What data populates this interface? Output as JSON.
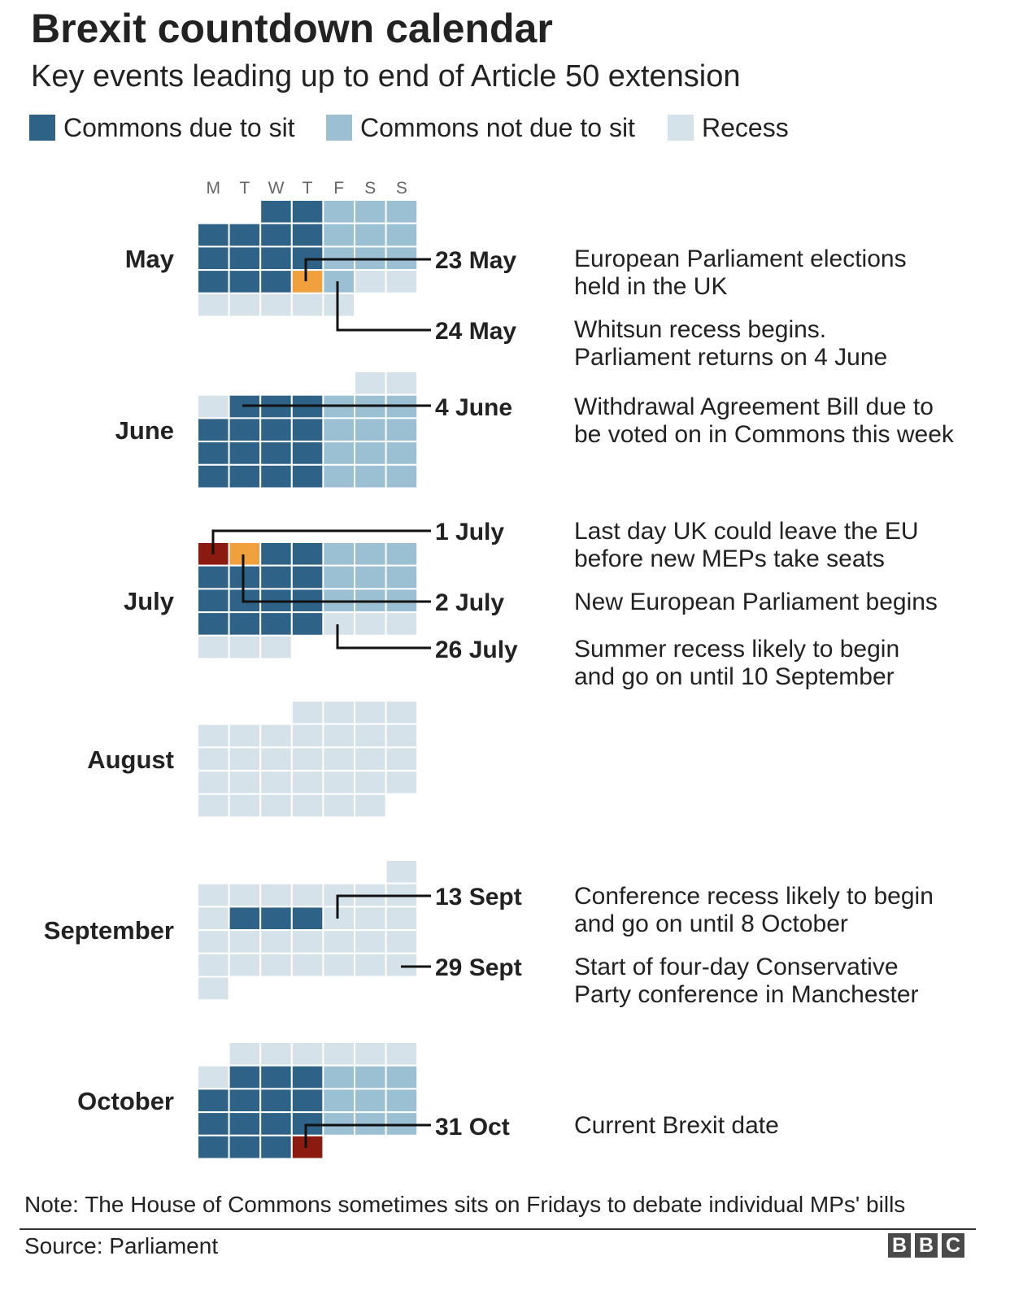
{
  "header": {
    "title": "Brexit countdown calendar",
    "subtitle": "Key events leading up to end of Article 50 extension"
  },
  "legend": [
    {
      "label": "Commons due to sit",
      "color": "#2f6287"
    },
    {
      "label": "Commons not due to sit",
      "color": "#9bc0d4"
    },
    {
      "label": "Recess",
      "color": "#d6e2e9"
    }
  ],
  "colors": {
    "sit": "#2f6287",
    "nosit": "#9bc0d4",
    "recess": "#d6e2e9",
    "highlight_orange": "#f0a03c",
    "highlight_red": "#8b1a10"
  },
  "weekdays": [
    "M",
    "T",
    "W",
    "T",
    "F",
    "S",
    "S"
  ],
  "months": [
    {
      "name": "May",
      "weeks": [
        "__SSNNN",
        "SSSSNNN",
        "SSSSNNN",
        "SSSONRR",
        "RRRRR__"
      ]
    },
    {
      "name": "June",
      "weeks": [
        "_____RR",
        "RSSSNNN",
        "SSSSNNN",
        "SSSSNNN",
        "SSSSNNN"
      ]
    },
    {
      "name": "July",
      "weeks": [
        "DOSSNNN",
        "SSSSNNN",
        "SSSSNNN",
        "SSSSRRR",
        "RRR____"
      ]
    },
    {
      "name": "August",
      "weeks": [
        "___RRRR",
        "RRRRRRR",
        "RRRRRRR",
        "RRRRRRR",
        "RRRRRR_"
      ]
    },
    {
      "name": "September",
      "weeks": [
        "______R",
        "RRRRRRR",
        "RSSSRRR",
        "RRRRRRR",
        "RRRRRRR",
        "R______"
      ]
    },
    {
      "name": "October",
      "weeks": [
        "_RRRRRR",
        "RSSSNNN",
        "SSSSNNN",
        "SSSSNNN",
        "SSSD___"
      ]
    }
  ],
  "events": [
    {
      "date": "23 May",
      "text": "European Parliament elections\nheld in the UK"
    },
    {
      "date": "24 May",
      "text": "Whitsun recess begins.\nParliament returns on 4 June"
    },
    {
      "date": "4 June",
      "text": "Withdrawal Agreement Bill due to\nbe voted on in Commons this week"
    },
    {
      "date": "1 July",
      "text": "Last day UK could leave the EU\nbefore new MEPs take seats"
    },
    {
      "date": "2 July",
      "text": "New European Parliament begins"
    },
    {
      "date": "26 July",
      "text": "Summer recess likely to begin\nand go on until 10 September"
    },
    {
      "date": "13 Sept",
      "text": "Conference recess likely to begin\nand go on until 8 October"
    },
    {
      "date": "29 Sept",
      "text": "Start of four-day Conservative\nParty conference in Manchester"
    },
    {
      "date": "31 Oct",
      "text": "Current Brexit date"
    }
  ],
  "footer": {
    "note": "Note: The House of Commons sometimes sits on Fridays to debate individual MPs' bills",
    "source": "Source: Parliament",
    "logo": [
      "B",
      "B",
      "C"
    ]
  }
}
